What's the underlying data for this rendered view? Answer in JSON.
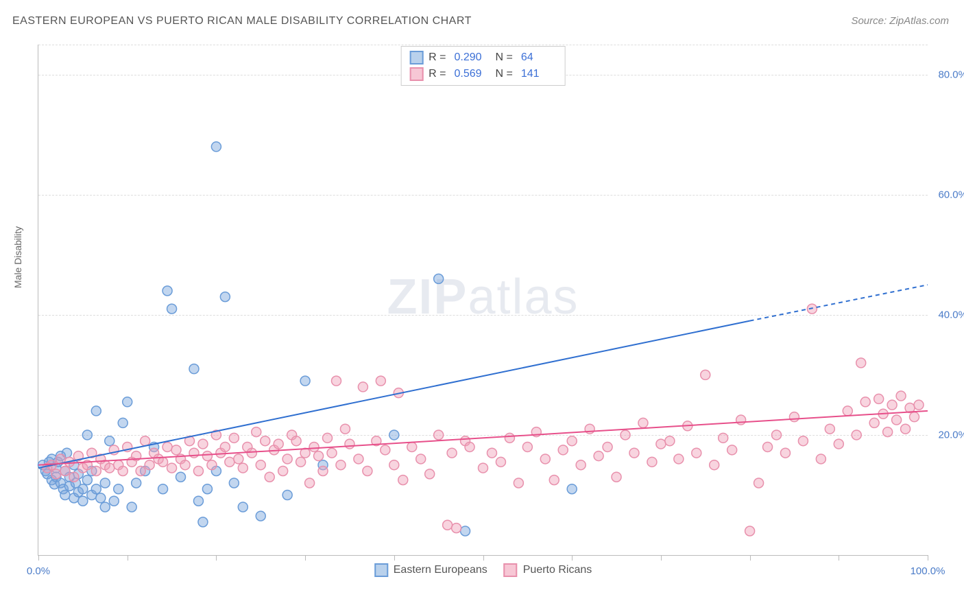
{
  "title": "EASTERN EUROPEAN VS PUERTO RICAN MALE DISABILITY CORRELATION CHART",
  "source": "Source: ZipAtlas.com",
  "y_axis_label": "Male Disability",
  "watermark": {
    "part1": "ZIP",
    "part2": "atlas"
  },
  "chart": {
    "type": "scatter",
    "background_color": "#ffffff",
    "grid_color": "#dddddd",
    "axis_color": "#bbbbbb",
    "tick_label_color": "#4a7bc8",
    "xlim": [
      0,
      100
    ],
    "ylim": [
      0,
      85
    ],
    "x_ticks": [
      0,
      10,
      20,
      30,
      40,
      50,
      60,
      70,
      80,
      90,
      100
    ],
    "x_tick_labels": {
      "0": "0.0%",
      "100": "100.0%"
    },
    "y_ticks": [
      20,
      40,
      60,
      80
    ],
    "y_tick_labels": {
      "20": "20.0%",
      "40": "40.0%",
      "60": "60.0%",
      "80": "80.0%"
    },
    "marker_radius": 7,
    "marker_stroke_width": 1.5,
    "line_width": 2,
    "series": [
      {
        "name": "Eastern Europeans",
        "fill_color": "rgba(120,165,220,0.45)",
        "stroke_color": "#6a9cd8",
        "line_color": "#2f6fd0",
        "swatch_fill": "#b9d1ec",
        "swatch_border": "#6a9cd8",
        "R": "0.290",
        "N": "64",
        "trend": {
          "x1": 0,
          "y1": 14.5,
          "x2": 80,
          "y2": 39,
          "dashed_to_x": 100,
          "dashed_to_y": 45
        },
        "points": [
          [
            0.5,
            15
          ],
          [
            0.8,
            14
          ],
          [
            1,
            13.5
          ],
          [
            1.2,
            15.5
          ],
          [
            1.5,
            12.5
          ],
          [
            1.5,
            16
          ],
          [
            1.8,
            11.8
          ],
          [
            2,
            13
          ],
          [
            2,
            14.5
          ],
          [
            2.2,
            15.5
          ],
          [
            2.5,
            12
          ],
          [
            2.5,
            16.5
          ],
          [
            2.8,
            11
          ],
          [
            3,
            14
          ],
          [
            3,
            10
          ],
          [
            3.2,
            17
          ],
          [
            3.5,
            13
          ],
          [
            3.5,
            11.5
          ],
          [
            4,
            9.5
          ],
          [
            4,
            15
          ],
          [
            4.2,
            12
          ],
          [
            4.5,
            10.5
          ],
          [
            4.5,
            13.5
          ],
          [
            5,
            11
          ],
          [
            5,
            9
          ],
          [
            5.5,
            12.5
          ],
          [
            5.5,
            20
          ],
          [
            6,
            10
          ],
          [
            6,
            14
          ],
          [
            6.5,
            11
          ],
          [
            6.5,
            24
          ],
          [
            7,
            9.5
          ],
          [
            7.5,
            12
          ],
          [
            7.5,
            8
          ],
          [
            8,
            19
          ],
          [
            8.5,
            9
          ],
          [
            9,
            11
          ],
          [
            9.5,
            22
          ],
          [
            10,
            25.5
          ],
          [
            10.5,
            8
          ],
          [
            11,
            12
          ],
          [
            12,
            14
          ],
          [
            13,
            18
          ],
          [
            14,
            11
          ],
          [
            14.5,
            44
          ],
          [
            15,
            41
          ],
          [
            16,
            13
          ],
          [
            17.5,
            31
          ],
          [
            18,
            9
          ],
          [
            18.5,
            5.5
          ],
          [
            19,
            11
          ],
          [
            20,
            68
          ],
          [
            20,
            14
          ],
          [
            21,
            43
          ],
          [
            22,
            12
          ],
          [
            23,
            8
          ],
          [
            25,
            6.5
          ],
          [
            28,
            10
          ],
          [
            30,
            29
          ],
          [
            32,
            15
          ],
          [
            40,
            20
          ],
          [
            45,
            46
          ],
          [
            48,
            4
          ],
          [
            60,
            11
          ]
        ]
      },
      {
        "name": "Puerto Ricans",
        "fill_color": "rgba(240,160,185,0.45)",
        "stroke_color": "#e890ac",
        "line_color": "#e74f8a",
        "swatch_fill": "#f7c7d5",
        "swatch_border": "#e890ac",
        "R": "0.569",
        "N": "141",
        "trend": {
          "x1": 0,
          "y1": 15,
          "x2": 100,
          "y2": 24
        },
        "points": [
          [
            1,
            14.5
          ],
          [
            1.5,
            15
          ],
          [
            2,
            13.5
          ],
          [
            2.5,
            16
          ],
          [
            3,
            14
          ],
          [
            3.5,
            15.5
          ],
          [
            4,
            13
          ],
          [
            4.5,
            16.5
          ],
          [
            5,
            14.5
          ],
          [
            5.5,
            15
          ],
          [
            6,
            17
          ],
          [
            6.5,
            14
          ],
          [
            7,
            16
          ],
          [
            7.5,
            15
          ],
          [
            8,
            14.5
          ],
          [
            8.5,
            17.5
          ],
          [
            9,
            15
          ],
          [
            9.5,
            14
          ],
          [
            10,
            18
          ],
          [
            10.5,
            15.5
          ],
          [
            11,
            16.5
          ],
          [
            11.5,
            14
          ],
          [
            12,
            19
          ],
          [
            12.5,
            15
          ],
          [
            13,
            17
          ],
          [
            13.5,
            16
          ],
          [
            14,
            15.5
          ],
          [
            14.5,
            18
          ],
          [
            15,
            14.5
          ],
          [
            15.5,
            17.5
          ],
          [
            16,
            16
          ],
          [
            16.5,
            15
          ],
          [
            17,
            19
          ],
          [
            17.5,
            17
          ],
          [
            18,
            14
          ],
          [
            18.5,
            18.5
          ],
          [
            19,
            16.5
          ],
          [
            19.5,
            15
          ],
          [
            20,
            20
          ],
          [
            20.5,
            17
          ],
          [
            21,
            18
          ],
          [
            21.5,
            15.5
          ],
          [
            22,
            19.5
          ],
          [
            22.5,
            16
          ],
          [
            23,
            14.5
          ],
          [
            23.5,
            18
          ],
          [
            24,
            17
          ],
          [
            24.5,
            20.5
          ],
          [
            25,
            15
          ],
          [
            25.5,
            19
          ],
          [
            26,
            13
          ],
          [
            26.5,
            17.5
          ],
          [
            27,
            18.5
          ],
          [
            27.5,
            14
          ],
          [
            28,
            16
          ],
          [
            28.5,
            20
          ],
          [
            29,
            19
          ],
          [
            29.5,
            15.5
          ],
          [
            30,
            17
          ],
          [
            30.5,
            12
          ],
          [
            31,
            18
          ],
          [
            31.5,
            16.5
          ],
          [
            32,
            14
          ],
          [
            32.5,
            19.5
          ],
          [
            33,
            17
          ],
          [
            33.5,
            29
          ],
          [
            34,
            15
          ],
          [
            34.5,
            21
          ],
          [
            35,
            18.5
          ],
          [
            36,
            16
          ],
          [
            36.5,
            28
          ],
          [
            37,
            14
          ],
          [
            38,
            19
          ],
          [
            38.5,
            29
          ],
          [
            39,
            17.5
          ],
          [
            40,
            15
          ],
          [
            40.5,
            27
          ],
          [
            41,
            12.5
          ],
          [
            42,
            18
          ],
          [
            43,
            16
          ],
          [
            44,
            13.5
          ],
          [
            45,
            20
          ],
          [
            46,
            5
          ],
          [
            46.5,
            17
          ],
          [
            47,
            4.5
          ],
          [
            48,
            19
          ],
          [
            48.5,
            18
          ],
          [
            50,
            14.5
          ],
          [
            51,
            17
          ],
          [
            52,
            15.5
          ],
          [
            53,
            19.5
          ],
          [
            54,
            12
          ],
          [
            55,
            18
          ],
          [
            56,
            20.5
          ],
          [
            57,
            16
          ],
          [
            58,
            12.5
          ],
          [
            59,
            17.5
          ],
          [
            60,
            19
          ],
          [
            61,
            15
          ],
          [
            62,
            21
          ],
          [
            63,
            16.5
          ],
          [
            64,
            18
          ],
          [
            65,
            13
          ],
          [
            66,
            20
          ],
          [
            67,
            17
          ],
          [
            68,
            22
          ],
          [
            69,
            15.5
          ],
          [
            70,
            18.5
          ],
          [
            71,
            19
          ],
          [
            72,
            16
          ],
          [
            73,
            21.5
          ],
          [
            74,
            17
          ],
          [
            75,
            30
          ],
          [
            76,
            15
          ],
          [
            77,
            19.5
          ],
          [
            78,
            17.5
          ],
          [
            79,
            22.5
          ],
          [
            80,
            4
          ],
          [
            81,
            12
          ],
          [
            82,
            18
          ],
          [
            83,
            20
          ],
          [
            84,
            17
          ],
          [
            85,
            23
          ],
          [
            86,
            19
          ],
          [
            87,
            41
          ],
          [
            88,
            16
          ],
          [
            89,
            21
          ],
          [
            90,
            18.5
          ],
          [
            91,
            24
          ],
          [
            92,
            20
          ],
          [
            92.5,
            32
          ],
          [
            93,
            25.5
          ],
          [
            94,
            22
          ],
          [
            94.5,
            26
          ],
          [
            95,
            23.5
          ],
          [
            95.5,
            20.5
          ],
          [
            96,
            25
          ],
          [
            96.5,
            22.5
          ],
          [
            97,
            26.5
          ],
          [
            97.5,
            21
          ],
          [
            98,
            24.5
          ],
          [
            98.5,
            23
          ],
          [
            99,
            25
          ]
        ]
      }
    ]
  },
  "legend_top_labels": {
    "R": "R =",
    "N": "N ="
  },
  "legend_bottom_labels": [
    "Eastern Europeans",
    "Puerto Ricans"
  ]
}
